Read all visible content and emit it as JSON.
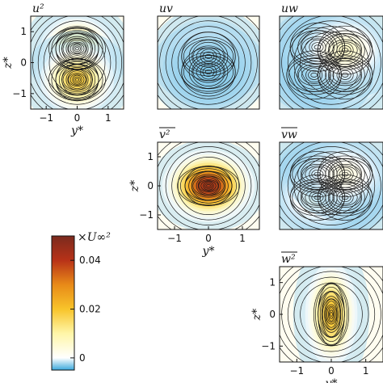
{
  "chart_data": {
    "type": "heatmap",
    "panels": [
      {
        "id": "uu",
        "title": "u²",
        "kind": "sequential",
        "peaks": [
          [
            0,
            0.45,
            0.45
          ],
          [
            0,
            -0.55,
            0.5
          ]
        ],
        "x_ticks": [
          "−1",
          "0",
          "1"
        ],
        "y_ticks": [
          "1",
          "0",
          "−1"
        ],
        "xlabel": "y*",
        "ylabel": "z*"
      },
      {
        "id": "uv",
        "title": "uv",
        "kind": "diverging",
        "peaks": [
          [
            0,
            0.2,
            0.35
          ],
          [
            0,
            -0.3,
            -0.7
          ]
        ],
        "x_ticks": [],
        "y_ticks": [],
        "xlabel": "",
        "ylabel": ""
      },
      {
        "id": "uw",
        "title": "uw",
        "kind": "diverging",
        "peaks": [
          [
            -0.4,
            0.5,
            -0.5
          ],
          [
            0.4,
            -0.4,
            0.5
          ],
          [
            -0.5,
            -0.4,
            -0.5
          ],
          [
            0.4,
            0.4,
            0.4
          ]
        ],
        "x_ticks": [],
        "y_ticks": [],
        "xlabel": "",
        "ylabel": ""
      },
      {
        "id": "vv",
        "title": "v²",
        "kind": "sequential",
        "peaks": [
          [
            0,
            0,
            1.0
          ]
        ],
        "x_ticks": [
          "−1",
          "0",
          "1"
        ],
        "y_ticks": [
          "1",
          "0",
          "−1"
        ],
        "xlabel": "y*",
        "ylabel": "z*"
      },
      {
        "id": "vw",
        "title": "vw",
        "kind": "diverging",
        "peaks": [
          [
            -0.4,
            0.4,
            -0.9
          ],
          [
            0.4,
            -0.4,
            -0.8
          ],
          [
            -0.4,
            -0.4,
            0.3
          ],
          [
            0.4,
            0.4,
            0.3
          ]
        ],
        "x_ticks": [],
        "y_ticks": [],
        "xlabel": "",
        "ylabel": ""
      },
      {
        "id": "ww",
        "title": "w²",
        "kind": "sequential",
        "peaks": [
          [
            0,
            0,
            0.55
          ]
        ],
        "x_ticks": [
          "−1",
          "0",
          "1"
        ],
        "y_ticks": [
          "1",
          "0",
          "−1"
        ],
        "xlabel": "y*",
        "ylabel": "z*"
      }
    ],
    "x_range": [
      -1.5,
      1.5
    ],
    "y_range": [
      -1.5,
      1.5
    ],
    "colorbar": {
      "label": "×U∞²",
      "range": [
        -0.005,
        0.05
      ],
      "ticks": [
        {
          "value": 0.04,
          "label": "0.04"
        },
        {
          "value": 0.02,
          "label": "0.02"
        },
        {
          "value": 0,
          "label": "0"
        }
      ],
      "colors": [
        "#3aa8dc",
        "#ffffff",
        "#fff6a8",
        "#f8c42a",
        "#e88a18",
        "#b83218",
        "#7a2a1e"
      ]
    }
  }
}
